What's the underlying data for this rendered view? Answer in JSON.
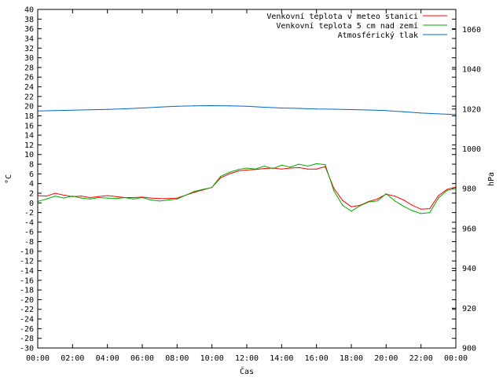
{
  "chart_data": {
    "type": "line",
    "xlabel": "Čas",
    "ylabel": "°C",
    "y2label": "hPa",
    "xlim": [
      0,
      24
    ],
    "ylim": [
      -30,
      40
    ],
    "y2lim": [
      900,
      1070
    ],
    "grid": false,
    "legend_position": "top-right",
    "x_ticks": [
      0,
      2,
      4,
      6,
      8,
      10,
      12,
      14,
      16,
      18,
      20,
      22,
      24
    ],
    "x_tick_labels": [
      "00:00",
      "02:00",
      "04:00",
      "06:00",
      "08:00",
      "10:00",
      "12:00",
      "14:00",
      "16:00",
      "18:00",
      "20:00",
      "22:00",
      "00:00"
    ],
    "y_ticks": [
      40,
      38,
      36,
      34,
      32,
      30,
      28,
      26,
      24,
      22,
      20,
      18,
      16,
      14,
      12,
      10,
      8,
      6,
      4,
      2,
      0,
      -2,
      -4,
      -6,
      -8,
      -10,
      -12,
      -14,
      -16,
      -18,
      -20,
      -22,
      -24,
      -26,
      -28,
      -30
    ],
    "y2_ticks": [
      1060,
      1040,
      1020,
      1000,
      980,
      960,
      940,
      920,
      900
    ],
    "series": [
      {
        "name": "Venkovní teplota v meteo stanici",
        "color": "#ff0000",
        "axis": "y",
        "x": [
          0,
          0.5,
          1,
          1.5,
          2,
          2.5,
          3,
          3.5,
          4,
          4.5,
          5,
          5.5,
          6,
          6.5,
          7,
          7.5,
          8,
          8.5,
          9,
          9.5,
          10,
          10.5,
          11,
          11.5,
          12,
          12.5,
          13,
          13.5,
          14,
          14.5,
          15,
          15.5,
          16,
          16.5,
          17,
          17.5,
          18,
          18.5,
          19,
          19.5,
          20,
          20.5,
          21,
          21.5,
          22,
          22.5,
          23,
          23.5,
          24
        ],
        "values": [
          1.5,
          1.4,
          2,
          1.6,
          1.3,
          1.4,
          1.1,
          1.3,
          1.5,
          1.3,
          1.1,
          1.1,
          1.2,
          1.0,
          0.9,
          0.9,
          1.0,
          1.6,
          2.2,
          2.7,
          3.2,
          5.2,
          6.0,
          6.6,
          6.8,
          6.9,
          7.1,
          7.2,
          7.0,
          7.2,
          7.3,
          7.0,
          7.0,
          7.5,
          3.0,
          0.5,
          -0.8,
          -0.5,
          0.3,
          0.8,
          1.8,
          1.4,
          0.6,
          -0.5,
          -1.3,
          -1.2,
          1.5,
          2.8,
          3.3
        ]
      },
      {
        "name": "Venkovní teplota 5 cm nad zemí",
        "color": "#00aa00",
        "axis": "y",
        "x": [
          0,
          0.5,
          1,
          1.5,
          2,
          2.5,
          3,
          3.5,
          4,
          4.5,
          5,
          5.5,
          6,
          6.5,
          7,
          7.5,
          8,
          8.5,
          9,
          9.5,
          10,
          10.5,
          11,
          11.5,
          12,
          12.5,
          13,
          13.5,
          14,
          14.5,
          15,
          15.5,
          16,
          16.5,
          17,
          17.5,
          18,
          18.5,
          19,
          19.5,
          20,
          20.5,
          21,
          21.5,
          22,
          22.5,
          23,
          23.5,
          24
        ],
        "values": [
          0.3,
          0.8,
          1.4,
          1.0,
          1.4,
          1.0,
          0.8,
          1.1,
          1.0,
          0.9,
          1.1,
          0.8,
          1.1,
          0.6,
          0.4,
          0.6,
          0.8,
          1.6,
          2.4,
          2.8,
          3.2,
          5.5,
          6.3,
          6.9,
          7.2,
          7.0,
          7.6,
          7.1,
          7.8,
          7.4,
          8.0,
          7.6,
          8.1,
          7.9,
          2.5,
          -0.5,
          -1.7,
          -0.6,
          0.2,
          0.4,
          1.9,
          0.4,
          -0.7,
          -1.6,
          -2.2,
          -2.0,
          1.0,
          2.6,
          3.0
        ]
      },
      {
        "name": "Atmosférický tlak",
        "color": "#0066cc",
        "axis": "y2",
        "x": [
          0,
          1,
          2,
          3,
          4,
          5,
          6,
          7,
          8,
          9,
          10,
          11,
          12,
          13,
          14,
          15,
          16,
          17,
          18,
          19,
          20,
          21,
          22,
          23,
          24
        ],
        "values": [
          1019.0,
          1019.2,
          1019.4,
          1019.6,
          1019.8,
          1020.1,
          1020.5,
          1021.0,
          1021.4,
          1021.6,
          1021.7,
          1021.6,
          1021.4,
          1020.9,
          1020.5,
          1020.3,
          1020.0,
          1019.9,
          1019.7,
          1019.5,
          1019.2,
          1018.6,
          1018.0,
          1017.6,
          1017.2
        ]
      }
    ]
  }
}
